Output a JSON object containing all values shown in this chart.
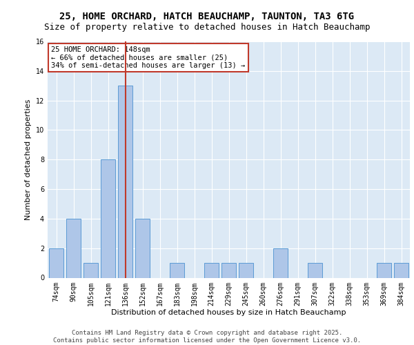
{
  "title_line1": "25, HOME ORCHARD, HATCH BEAUCHAMP, TAUNTON, TA3 6TG",
  "title_line2": "Size of property relative to detached houses in Hatch Beauchamp",
  "xlabel": "Distribution of detached houses by size in Hatch Beauchamp",
  "ylabel": "Number of detached properties",
  "categories": [
    "74sqm",
    "90sqm",
    "105sqm",
    "121sqm",
    "136sqm",
    "152sqm",
    "167sqm",
    "183sqm",
    "198sqm",
    "214sqm",
    "229sqm",
    "245sqm",
    "260sqm",
    "276sqm",
    "291sqm",
    "307sqm",
    "322sqm",
    "338sqm",
    "353sqm",
    "369sqm",
    "384sqm"
  ],
  "values": [
    2,
    4,
    1,
    8,
    13,
    4,
    0,
    1,
    0,
    1,
    1,
    1,
    0,
    2,
    0,
    1,
    0,
    0,
    0,
    1,
    1
  ],
  "bar_color": "#aec6e8",
  "bar_edge_color": "#5b9bd5",
  "highlight_index": 4,
  "highlight_line_color": "#c0392b",
  "annotation_text": "25 HOME ORCHARD: 148sqm\n← 66% of detached houses are smaller (25)\n34% of semi-detached houses are larger (13) →",
  "annotation_box_color": "#ffffff",
  "annotation_box_edge": "#c0392b",
  "ylim": [
    0,
    16
  ],
  "yticks": [
    0,
    2,
    4,
    6,
    8,
    10,
    12,
    14,
    16
  ],
  "background_color": "#dce9f5",
  "grid_color": "#ffffff",
  "footer_line1": "Contains HM Land Registry data © Crown copyright and database right 2025.",
  "footer_line2": "Contains public sector information licensed under the Open Government Licence v3.0.",
  "title_fontsize": 10,
  "subtitle_fontsize": 9,
  "axis_label_fontsize": 8,
  "tick_fontsize": 7,
  "annotation_fontsize": 7.5,
  "footer_fontsize": 6.5
}
